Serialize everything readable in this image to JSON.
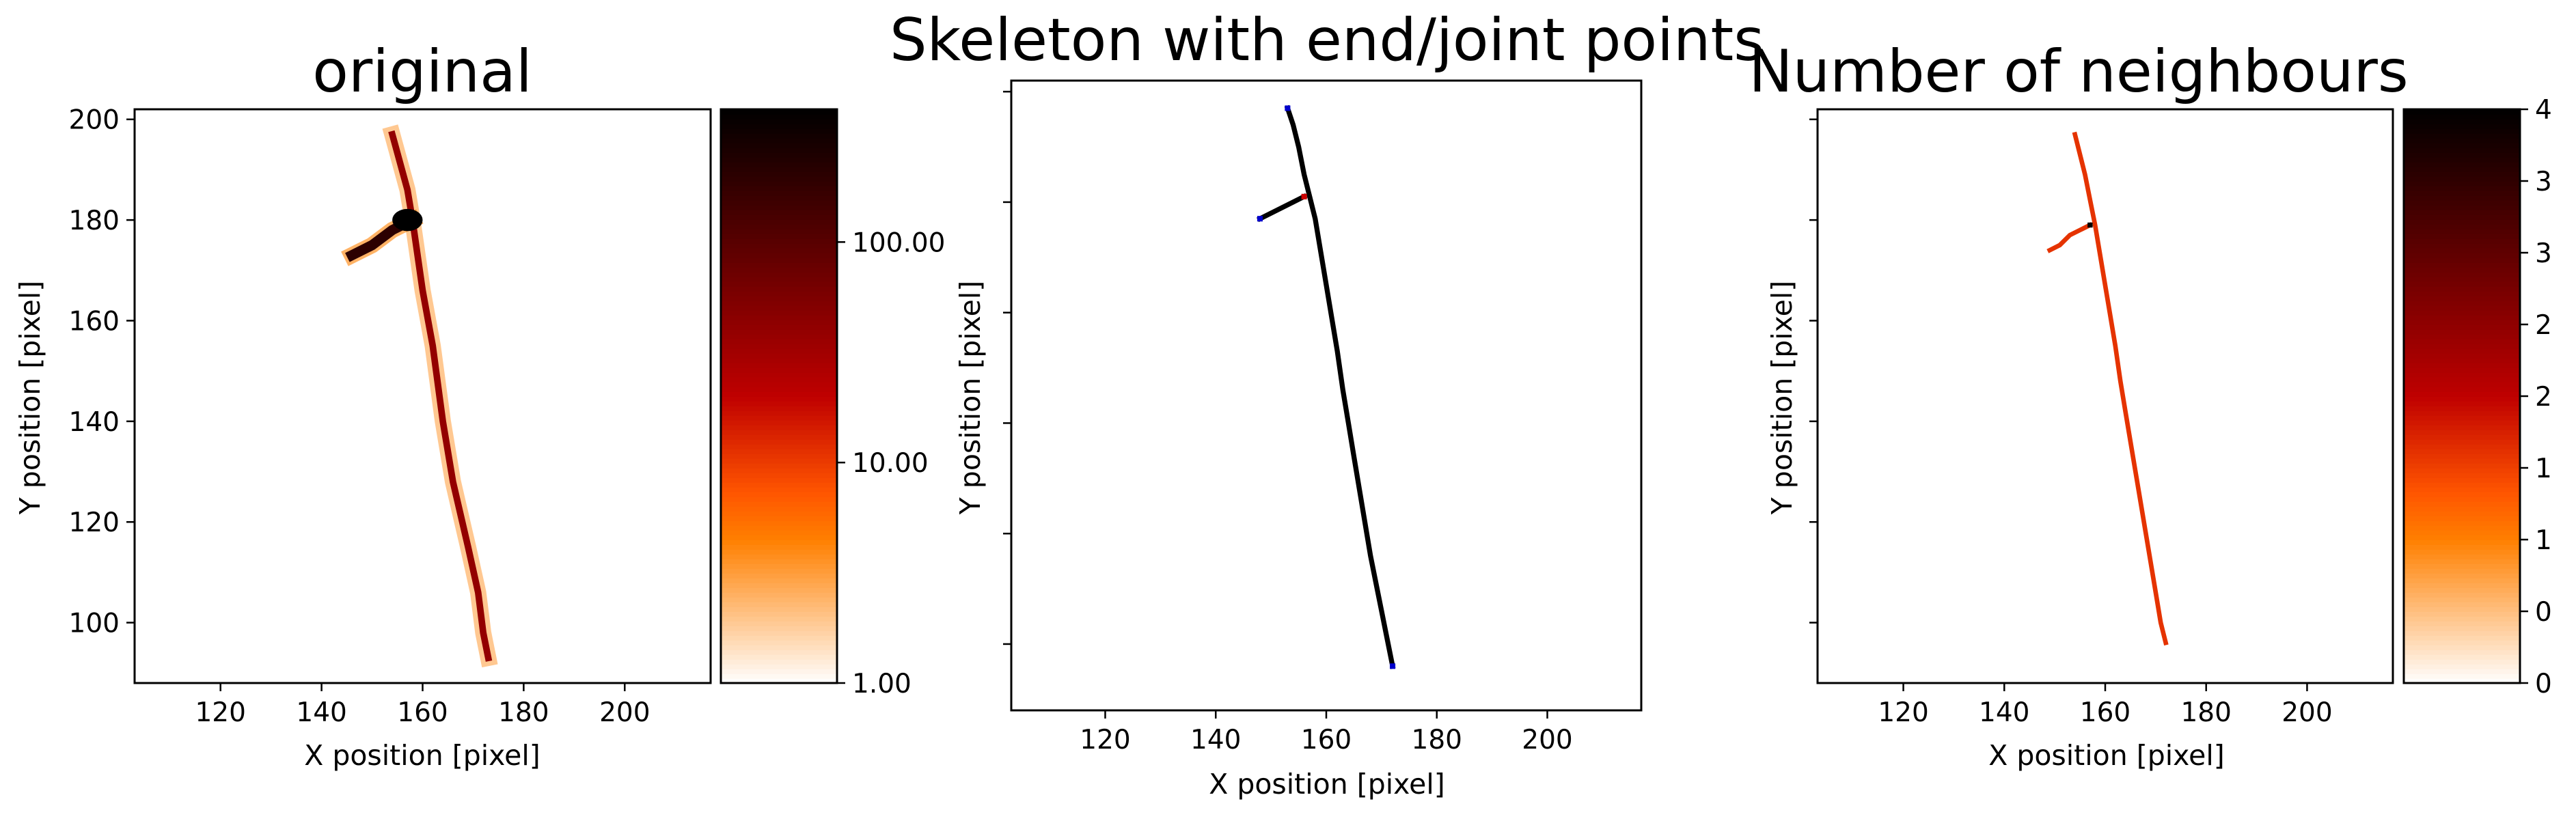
{
  "chart_data": [
    {
      "type": "heatmap",
      "title": "original",
      "xlabel": "X position [pixel]",
      "ylabel": "Y position [pixel]",
      "xlim": [
        103,
        217
      ],
      "ylim": [
        88,
        202
      ],
      "xticks": [
        120,
        140,
        160,
        180,
        200
      ],
      "yticks": [
        100,
        120,
        140,
        160,
        180,
        200
      ],
      "colormap": "gist_heat_r",
      "color_scale": "log",
      "colorbar": {
        "ticks": [
          1,
          10,
          100
        ],
        "tick_labels": [
          "1.00",
          "10.00",
          "100.00"
        ],
        "range": [
          1,
          400
        ]
      },
      "track": [
        {
          "x": 154,
          "y": 197
        },
        {
          "x": 157,
          "y": 186
        },
        {
          "x": 158,
          "y": 180
        },
        {
          "x": 160,
          "y": 166
        },
        {
          "x": 162,
          "y": 155
        },
        {
          "x": 164,
          "y": 140
        },
        {
          "x": 166,
          "y": 128
        },
        {
          "x": 169,
          "y": 115
        },
        {
          "x": 171,
          "y": 106
        },
        {
          "x": 172,
          "y": 98
        },
        {
          "x": 173,
          "y": 93
        }
      ],
      "branch": [
        {
          "x": 146,
          "y": 173
        },
        {
          "x": 150,
          "y": 175
        },
        {
          "x": 154,
          "y": 178
        },
        {
          "x": 158,
          "y": 180
        }
      ],
      "hotspot": {
        "x": 157,
        "y": 180
      },
      "track_value": 40,
      "branch_value": 200,
      "hotspot_value": 400
    },
    {
      "type": "heatmap",
      "title": "Skeleton with end/joint points",
      "xlabel": "X position [pixel]",
      "ylabel": "Y position [pixel]",
      "xlim": [
        103,
        217
      ],
      "ylim": [
        88,
        202
      ],
      "xticks": [
        120,
        140,
        160,
        180,
        200
      ],
      "yticks": [
        100,
        120,
        140,
        160,
        180,
        200
      ],
      "show_ytick_labels": false,
      "skeleton_color": "#000000",
      "end_point_color": "#0000cc",
      "joint_point_color": "#cc0000",
      "track": [
        {
          "x": 153,
          "y": 197
        },
        {
          "x": 154,
          "y": 194
        },
        {
          "x": 155,
          "y": 190
        },
        {
          "x": 156,
          "y": 185
        },
        {
          "x": 157,
          "y": 181
        },
        {
          "x": 158,
          "y": 177
        },
        {
          "x": 159,
          "y": 171
        },
        {
          "x": 160,
          "y": 165
        },
        {
          "x": 161,
          "y": 159
        },
        {
          "x": 162,
          "y": 153
        },
        {
          "x": 163,
          "y": 146
        },
        {
          "x": 164,
          "y": 140
        },
        {
          "x": 165,
          "y": 134
        },
        {
          "x": 166,
          "y": 128
        },
        {
          "x": 167,
          "y": 122
        },
        {
          "x": 168,
          "y": 116
        },
        {
          "x": 169,
          "y": 111
        },
        {
          "x": 170,
          "y": 106
        },
        {
          "x": 171,
          "y": 101
        },
        {
          "x": 172,
          "y": 96
        }
      ],
      "branch": [
        {
          "x": 148,
          "y": 177
        },
        {
          "x": 150,
          "y": 178
        },
        {
          "x": 152,
          "y": 179
        },
        {
          "x": 154,
          "y": 180
        },
        {
          "x": 156,
          "y": 181
        }
      ],
      "end_points": [
        {
          "x": 153,
          "y": 197
        },
        {
          "x": 148,
          "y": 177
        },
        {
          "x": 172,
          "y": 96
        }
      ],
      "joint_points": [
        {
          "x": 156,
          "y": 181
        }
      ]
    },
    {
      "type": "heatmap",
      "title": "Number of neighbours",
      "xlabel": "X position [pixel]",
      "ylabel": "Y position [pixel]",
      "xlim": [
        103,
        217
      ],
      "ylim": [
        88,
        202
      ],
      "xticks": [
        120,
        140,
        160,
        180,
        200
      ],
      "yticks": [
        100,
        120,
        140,
        160,
        180,
        200
      ],
      "show_ytick_labels": false,
      "colormap": "gist_heat_r",
      "colorbar": {
        "range": [
          0,
          4
        ],
        "ticks": [
          0,
          0.5,
          1,
          1.5,
          2,
          2.5,
          3,
          3.5,
          4
        ],
        "tick_labels": [
          "0",
          "0",
          "1",
          "1",
          "2",
          "2",
          "3",
          "3",
          "4"
        ]
      },
      "track": [
        {
          "x": 154,
          "y": 197
        },
        {
          "x": 155,
          "y": 193
        },
        {
          "x": 156,
          "y": 189
        },
        {
          "x": 157,
          "y": 184
        },
        {
          "x": 158,
          "y": 179
        },
        {
          "x": 159,
          "y": 173
        },
        {
          "x": 160,
          "y": 167
        },
        {
          "x": 161,
          "y": 161
        },
        {
          "x": 162,
          "y": 155
        },
        {
          "x": 163,
          "y": 148
        },
        {
          "x": 164,
          "y": 142
        },
        {
          "x": 165,
          "y": 136
        },
        {
          "x": 166,
          "y": 130
        },
        {
          "x": 167,
          "y": 124
        },
        {
          "x": 168,
          "y": 118
        },
        {
          "x": 169,
          "y": 112
        },
        {
          "x": 170,
          "y": 106
        },
        {
          "x": 171,
          "y": 100
        },
        {
          "x": 172,
          "y": 96
        }
      ],
      "branch": [
        {
          "x": 149,
          "y": 174
        },
        {
          "x": 151,
          "y": 175
        },
        {
          "x": 153,
          "y": 177
        },
        {
          "x": 155,
          "y": 178
        },
        {
          "x": 157,
          "y": 179
        }
      ],
      "track_value": 1.6,
      "joint_point": {
        "x": 157,
        "y": 179
      },
      "joint_value": 4
    }
  ]
}
